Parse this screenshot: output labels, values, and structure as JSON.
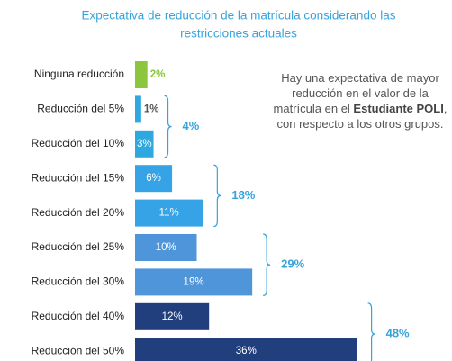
{
  "chart_data": {
    "type": "bar",
    "orientation": "horizontal",
    "title": [
      "Expectativa de reducción de la matrícula considerando las",
      "restricciones actuales"
    ],
    "categories": [
      "Ninguna reducción",
      "Reducción del 5%",
      "Reducción del 10%",
      "Reducción del 15%",
      "Reducción del 20%",
      "Reducción del 25%",
      "Reducción del 30%",
      "Reducción del 40%",
      "Reducción del 50%"
    ],
    "values": [
      2,
      1,
      3,
      6,
      11,
      10,
      19,
      12,
      36
    ],
    "value_labels": [
      "2%",
      "1%",
      "3%",
      "6%",
      "11%",
      "10%",
      "19%",
      "12%",
      "36%"
    ],
    "colors": [
      "#8cc63f",
      "#2fa8df",
      "#2fa8df",
      "#36a3e6",
      "#36a3e6",
      "#4f95da",
      "#4f95da",
      "#213f7c",
      "#213f7c"
    ],
    "xlim": [
      0,
      40
    ],
    "groups": [
      {
        "from": 1,
        "to": 2,
        "value": 4,
        "label": "4%"
      },
      {
        "from": 3,
        "to": 4,
        "value": 18,
        "label": "18%"
      },
      {
        "from": 5,
        "to": 6,
        "value": 29,
        "label": "29%"
      },
      {
        "from": 7,
        "to": 8,
        "value": 48,
        "label": "48%"
      }
    ],
    "annotation": [
      "Hay una expectativa de mayor reducción en el valor de la matrícula en el ",
      "Estudiante POLI",
      ", con respecto a los otros grupos."
    ]
  }
}
